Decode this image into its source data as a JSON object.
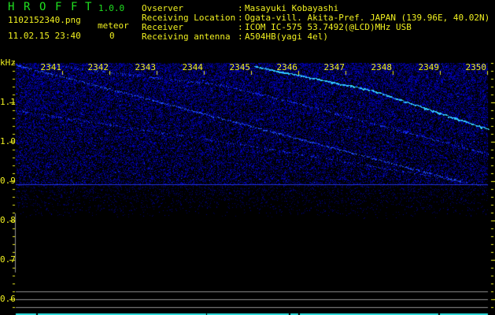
{
  "header": {
    "app_letters": [
      "H",
      "R",
      "O",
      "F",
      "F",
      "T"
    ],
    "version": "1.0.0",
    "filename": "1102152340.png",
    "datetime": "11.02.15 23:40",
    "meteor_label": "meteor",
    "meteor_count": "0"
  },
  "info": [
    {
      "label": "Ovserver",
      "value": "Masayuki Kobayashi"
    },
    {
      "label": "Receiving Location",
      "value": "Ogata-vill. Akita-Pref. JAPAN (139.96E, 40.02N)"
    },
    {
      "label": "Receiver",
      "value": "ICOM IC-575 53.7492(@LCD)MHz USB"
    },
    {
      "label": "Receiving antenna",
      "value": "A504HB(yagi 4el)"
    }
  ],
  "spectrogram": {
    "freq_unit": "kHz",
    "time_labels": [
      "2341",
      "2342",
      "2343",
      "2344",
      "2345",
      "2346",
      "2347",
      "2348",
      "2349",
      "2350"
    ],
    "freq_labels": [
      "1.1",
      "1.0",
      "0.9",
      "0.8",
      "0.7",
      "0.6"
    ],
    "colors": {
      "axis_text": "#f0f020",
      "noise": "#1020d0",
      "echo": "#30d0ff",
      "guide_line": "#909090",
      "bottom_bar": "#30e0e0"
    }
  }
}
